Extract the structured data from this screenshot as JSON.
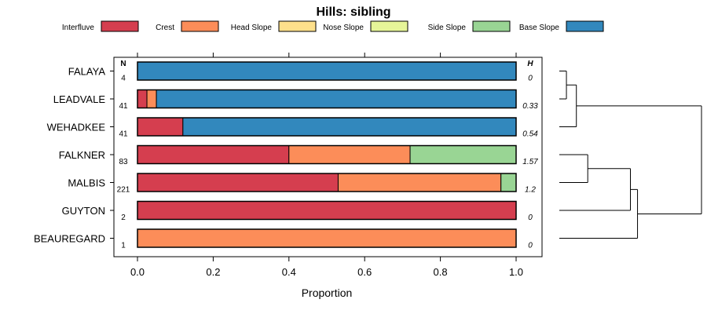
{
  "chart_data": {
    "type": "bar",
    "orientation": "horizontal",
    "stacked": true,
    "title": "Hills: sibling",
    "xlabel": "Proportion",
    "ylabel": "",
    "xlim": [
      0,
      1
    ],
    "xticks": [
      0,
      0.2,
      0.4,
      0.6,
      0.8,
      1
    ],
    "xtick_labels": [
      "0.0",
      "0.2",
      "0.4",
      "0.6",
      "0.8",
      "1.0"
    ],
    "legend_position": "top",
    "categories": [
      "FALAYA",
      "LEADVALE",
      "WEHADKEE",
      "FALKNER",
      "MALBIS",
      "GUYTON",
      "BEAUREGARD"
    ],
    "n_header": "N",
    "n_values": [
      "4",
      "41",
      "41",
      "83",
      "221",
      "2",
      "1"
    ],
    "h_header": "H",
    "h_values": [
      "0",
      "0.33",
      "0.54",
      "1.57",
      "1.2",
      "0",
      "0"
    ],
    "series": [
      {
        "name": "Interfluve",
        "color": "#d53e4f",
        "values": [
          0,
          0.025,
          0.12,
          0.4,
          0.53,
          1,
          0
        ]
      },
      {
        "name": "Crest",
        "color": "#fc8d59",
        "values": [
          0,
          0.025,
          0,
          0.32,
          0.43,
          0,
          1
        ]
      },
      {
        "name": "Head Slope",
        "color": "#fee08b",
        "values": [
          0,
          0,
          0,
          0,
          0,
          0,
          0
        ]
      },
      {
        "name": "Nose Slope",
        "color": "#e6f598",
        "values": [
          0,
          0,
          0,
          0,
          0,
          0,
          0
        ]
      },
      {
        "name": "Side Slope",
        "color": "#99d594",
        "values": [
          0,
          0,
          0,
          0.28,
          0.04,
          0,
          0
        ]
      },
      {
        "name": "Base Slope",
        "color": "#3288bd",
        "values": [
          1,
          0.95,
          0.88,
          0,
          0,
          0,
          0
        ]
      }
    ],
    "dendrogram": {
      "leaf_order": [
        "FALAYA",
        "LEADVALE",
        "WEHADKEE",
        "FALKNER",
        "MALBIS",
        "GUYTON",
        "BEAUREGARD"
      ],
      "merges": [
        {
          "a": "FALAYA",
          "b": "LEADVALE",
          "height": 0.05
        },
        {
          "a": "m1",
          "b": "WEHADKEE",
          "height": 0.12
        },
        {
          "a": "FALKNER",
          "b": "MALBIS",
          "height": 0.2
        },
        {
          "a": "m3",
          "b": "GUYTON",
          "height": 0.5
        },
        {
          "a": "m4",
          "b": "BEAUREGARD",
          "height": 0.55
        },
        {
          "a": "m2",
          "b": "m5",
          "height": 1.0
        }
      ]
    }
  }
}
